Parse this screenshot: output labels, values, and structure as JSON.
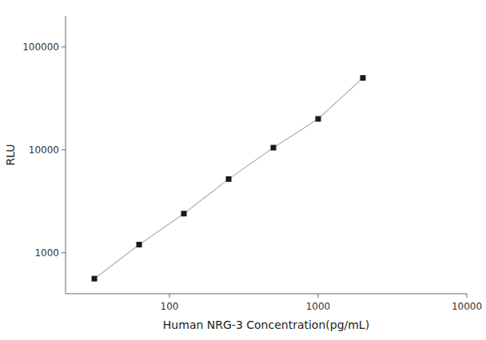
{
  "chart_data": {
    "type": "line",
    "x_label": "Human NRG-3 Concentration(pg/mL)",
    "y_label": "RLU",
    "x": [
      31.25,
      62.5,
      125,
      250,
      500,
      1000,
      2000
    ],
    "values": [
      560,
      1200,
      2400,
      5200,
      10500,
      20000,
      50000
    ],
    "color": "#b0b0b0",
    "colors": [
      "#1a1a1a",
      "#1a1a1a",
      "#1a1a1a",
      "#1a1a1a",
      "#1a1a1a",
      "#1a1a1a",
      "#1a1a1a"
    ],
    "marker": "square",
    "log": true,
    "grid": false,
    "xlim": [
      20,
      10000
    ],
    "ylim": [
      400,
      200000
    ],
    "xticks": [
      100,
      1000,
      10000
    ],
    "yticks": [
      1000,
      10000,
      100000
    ]
  }
}
